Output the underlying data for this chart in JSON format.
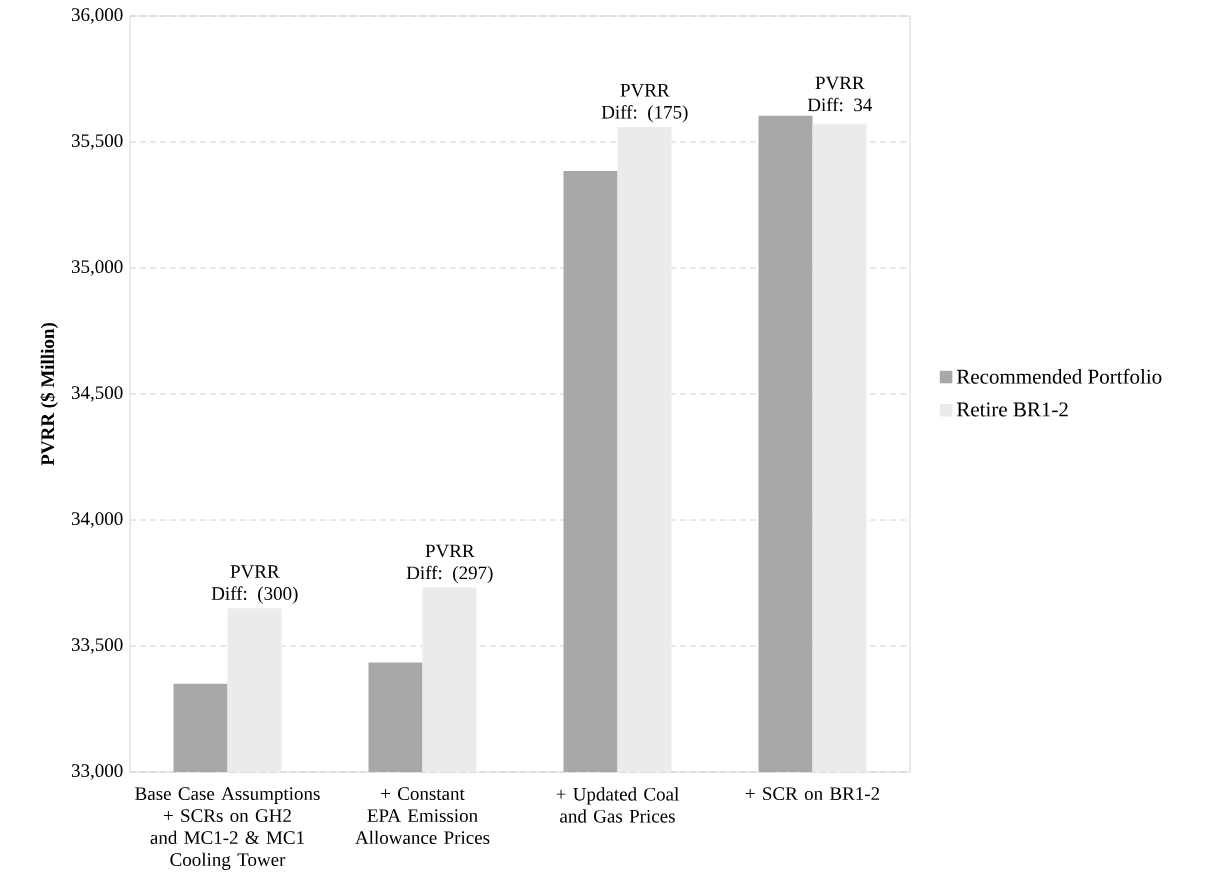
{
  "chart_data": {
    "type": "bar",
    "ylabel": "PVRR ($ Million)",
    "categories": [
      "Base Case Assumptions + SCRs on GH2 and MC1-2 & MC1 Cooling Tower",
      "+ Constant EPA Emission Allowance Prices",
      "+ Updated Coal and Gas Prices",
      "+ SCR on BR1-2"
    ],
    "series": [
      {
        "name": "Recommended Portfolio",
        "color": "#a8a8a8",
        "values": [
          33350,
          33435,
          35385,
          35604
        ]
      },
      {
        "name": "Retire BR1-2",
        "color": "#ebebeb",
        "values": [
          33650,
          33732,
          35560,
          35570
        ]
      }
    ],
    "ylim": [
      33000,
      36000
    ],
    "yticks": [
      {
        "value": 33000,
        "label": "33,000"
      },
      {
        "value": 33500,
        "label": "33,500"
      },
      {
        "value": 34000,
        "label": "34,000"
      },
      {
        "value": 34500,
        "label": "34,500"
      },
      {
        "value": 35000,
        "label": "35,000"
      },
      {
        "value": 35500,
        "label": "35,500"
      },
      {
        "value": 36000,
        "label": "36,000"
      }
    ],
    "annotations": [
      {
        "text": "PVRR Diff: (300)",
        "x": "Base Case Assumptions + SCRs on GH2 and MC1-2 & MC1 Cooling Tower",
        "y": 33650
      },
      {
        "text": "PVRR Diff: (297)",
        "x": "+ Constant EPA Emission Allowance Prices",
        "y": 33732
      },
      {
        "text": "PVRR Diff: (175)",
        "x": "+ Updated Coal and Gas Prices",
        "y": 35560
      },
      {
        "text": "PVRR Diff: 34",
        "x": "+ SCR on BR1-2",
        "y": 35604
      }
    ],
    "grid": "y",
    "legend": "right"
  }
}
